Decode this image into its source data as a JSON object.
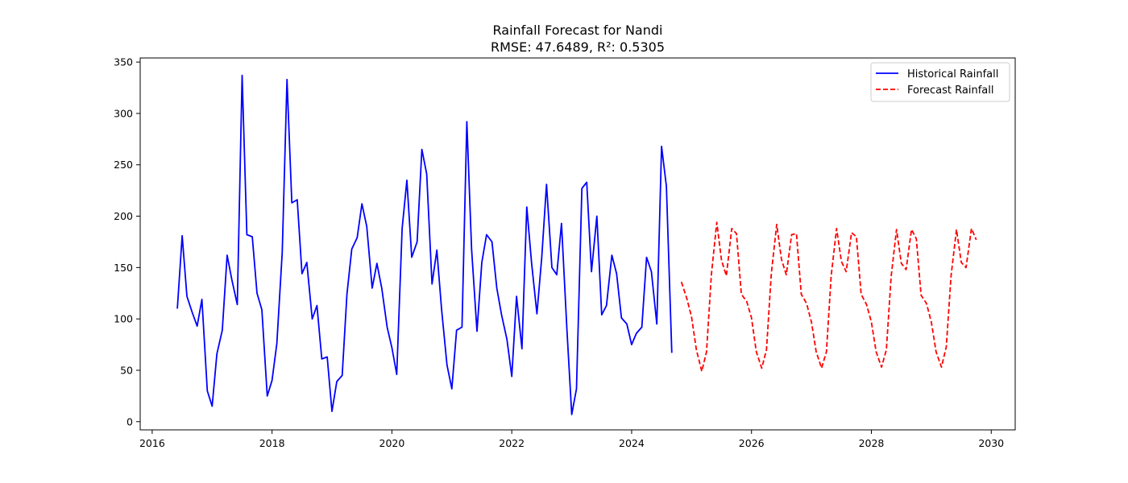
{
  "chart_data": {
    "type": "line",
    "title": "Rainfall Forecast for Nandi",
    "subtitle": "RMSE: 47.6489, R²: 0.5305",
    "xlabel": "",
    "ylabel": "",
    "xlim": [
      2015.8,
      2030.4
    ],
    "ylim": [
      -8,
      354
    ],
    "x_ticks": [
      2016,
      2018,
      2020,
      2022,
      2024,
      2026,
      2028,
      2030
    ],
    "y_ticks": [
      0,
      50,
      100,
      150,
      200,
      250,
      300,
      350
    ],
    "grid": false,
    "legend_position": "top-right",
    "series": [
      {
        "name": "Historical Rainfall",
        "color": "#0000ff",
        "style": "solid",
        "x": [
          2016.42,
          2016.5,
          2016.58,
          2016.67,
          2016.75,
          2016.83,
          2016.92,
          2017.0,
          2017.08,
          2017.17,
          2017.25,
          2017.33,
          2017.42,
          2017.5,
          2017.58,
          2017.67,
          2017.75,
          2017.83,
          2017.92,
          2018.0,
          2018.08,
          2018.17,
          2018.25,
          2018.33,
          2018.42,
          2018.5,
          2018.58,
          2018.67,
          2018.75,
          2018.83,
          2018.92,
          2019.0,
          2019.08,
          2019.17,
          2019.25,
          2019.33,
          2019.42,
          2019.5,
          2019.58,
          2019.67,
          2019.75,
          2019.83,
          2019.92,
          2020.0,
          2020.08,
          2020.17,
          2020.25,
          2020.33,
          2020.42,
          2020.5,
          2020.58,
          2020.67,
          2020.75,
          2020.83,
          2020.92,
          2021.0,
          2021.08,
          2021.17,
          2021.25,
          2021.33,
          2021.42,
          2021.5,
          2021.58,
          2021.67,
          2021.75,
          2021.83,
          2021.92,
          2022.0,
          2022.08,
          2022.17,
          2022.25,
          2022.33,
          2022.42,
          2022.5,
          2022.58,
          2022.67,
          2022.75,
          2022.83,
          2022.92,
          2023.0,
          2023.08,
          2023.17,
          2023.25,
          2023.33,
          2023.42,
          2023.5,
          2023.58,
          2023.67,
          2023.75,
          2023.83,
          2023.92,
          2024.0,
          2024.08,
          2024.17,
          2024.25,
          2024.33,
          2024.42,
          2024.5,
          2024.58,
          2024.67
        ],
        "values": [
          110,
          181,
          122,
          106,
          93,
          119,
          30,
          15,
          66,
          89,
          162,
          138,
          114,
          337,
          182,
          180,
          125,
          109,
          25,
          40,
          76,
          165,
          333,
          213,
          216,
          144,
          155,
          100,
          113,
          61,
          63,
          10,
          39,
          45,
          124,
          168,
          179,
          212,
          190,
          130,
          154,
          130,
          92,
          72,
          46,
          188,
          235,
          160,
          175,
          265,
          241,
          134,
          167,
          109,
          55,
          32,
          89,
          92,
          292,
          168,
          88,
          155,
          182,
          175,
          130,
          104,
          80,
          44,
          122,
          71,
          209,
          155,
          105,
          160,
          231,
          150,
          143,
          193,
          90,
          7,
          32,
          227,
          233,
          146,
          200,
          104,
          113,
          162,
          144,
          101,
          95,
          75,
          86,
          92,
          160,
          146,
          95,
          268,
          229,
          67
        ]
      },
      {
        "name": "Forecast Rainfall",
        "color": "#ff0000",
        "style": "dashed",
        "x": [
          2024.83,
          2024.92,
          2025.0,
          2025.08,
          2025.17,
          2025.25,
          2025.33,
          2025.42,
          2025.5,
          2025.58,
          2025.67,
          2025.75,
          2025.83,
          2025.92,
          2026.0,
          2026.08,
          2026.17,
          2026.25,
          2026.33,
          2026.42,
          2026.5,
          2026.58,
          2026.67,
          2026.75,
          2026.83,
          2026.92,
          2027.0,
          2027.08,
          2027.17,
          2027.25,
          2027.33,
          2027.42,
          2027.5,
          2027.58,
          2027.67,
          2027.75,
          2027.83,
          2027.92,
          2028.0,
          2028.08,
          2028.17,
          2028.25,
          2028.33,
          2028.42,
          2028.5,
          2028.58,
          2028.67,
          2028.75,
          2028.83,
          2028.92,
          2029.0,
          2029.08,
          2029.17,
          2029.25,
          2029.33,
          2029.42,
          2029.5,
          2029.58,
          2029.67,
          2029.75
        ],
        "values": [
          136,
          120,
          102,
          70,
          49,
          68,
          143,
          194,
          157,
          142,
          188,
          183,
          124,
          117,
          101,
          68,
          52,
          70,
          144,
          192,
          158,
          143,
          182,
          183,
          124,
          115,
          97,
          68,
          52,
          68,
          142,
          188,
          156,
          146,
          184,
          180,
          124,
          114,
          97,
          68,
          53,
          70,
          141,
          187,
          154,
          148,
          187,
          178,
          123,
          115,
          97,
          68,
          53,
          73,
          142,
          187,
          155,
          150,
          188,
          177
        ]
      }
    ]
  }
}
